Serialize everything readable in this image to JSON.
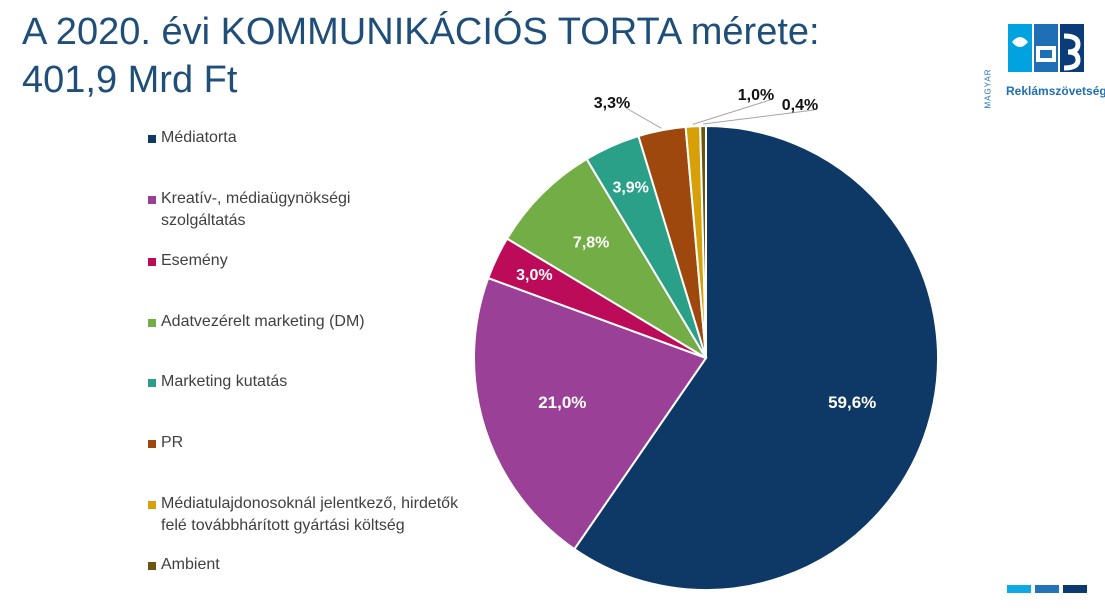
{
  "title": {
    "line1": "A 2020. évi KOMMUNIKÁCIÓS TORTA mérete:",
    "line2": "401,9 Mrd Ft"
  },
  "logo": {
    "top_text": "MAGYAR",
    "bottom_text": "Reklámszövetség",
    "colors": [
      "#00a3e0",
      "#1e6fb5",
      "#0b3c7a"
    ]
  },
  "footer_bars": {
    "colors": [
      "#0fa9e6",
      "#2273b8",
      "#0d3a6e"
    ]
  },
  "chart_data": {
    "type": "pie",
    "title": "",
    "start_angle_deg": 0,
    "direction": "clockwise",
    "legend_position": "left",
    "slices": [
      {
        "label": "Médiatorta",
        "value": 59.6,
        "display": "59,6%",
        "color": "#0e3866"
      },
      {
        "label": "Kreatív-, médiaügynökségi szolgáltatás",
        "value": 21.0,
        "display": "21,0%",
        "color": "#9a4096"
      },
      {
        "label": "Esemény",
        "value": 3.0,
        "display": "3,0%",
        "color": "#bc0b58"
      },
      {
        "label": "Adatvezérelt marketing (DM)",
        "value": 7.8,
        "display": "7,8%",
        "color": "#73ad45"
      },
      {
        "label": "Marketing kutatás",
        "value": 3.9,
        "display": "3,9%",
        "color": "#2aa088"
      },
      {
        "label": "PR",
        "value": 3.3,
        "display": "3,3%",
        "color": "#9e480e"
      },
      {
        "label": "Médiatulajdonosoknál jelentkező, hirdetők felé továbbhárított gyártási költség",
        "value": 1.0,
        "display": "1,0%",
        "color": "#d7a008"
      },
      {
        "label": "Ambient",
        "value": 0.4,
        "display": "0,4%",
        "color": "#6b5511"
      }
    ]
  }
}
